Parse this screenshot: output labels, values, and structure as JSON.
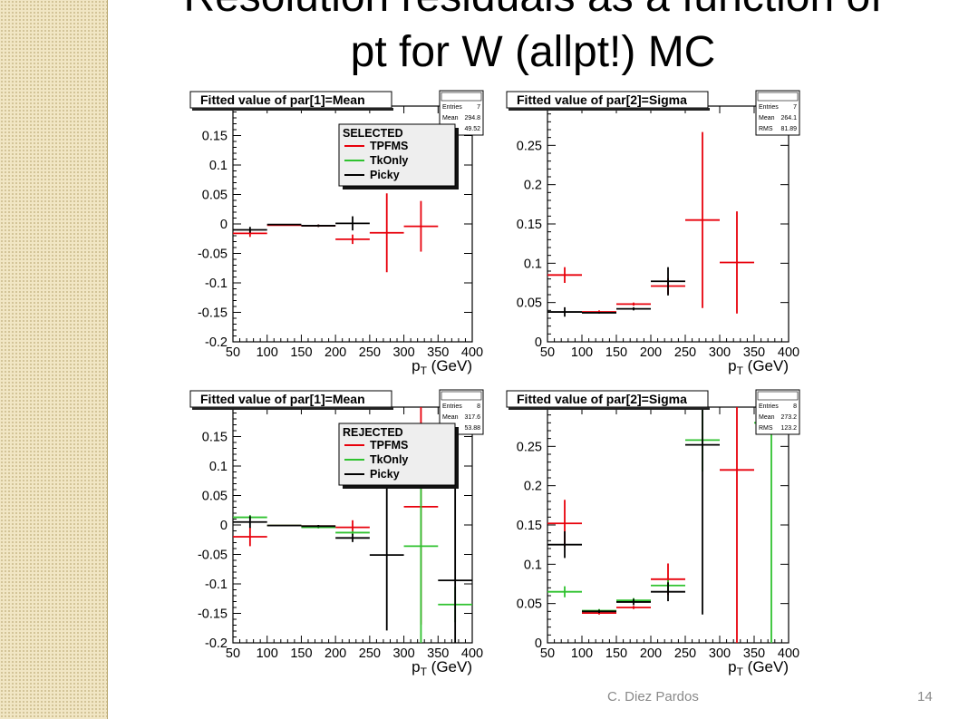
{
  "slide": {
    "title_line1": "Resolution residuals as a function of",
    "title_line2": "pt for W (allpt!) MC",
    "footer_author": "C. Diez Pardos",
    "page_number": "14"
  },
  "colors": {
    "TPFMS": "#e8000b",
    "TkOnly": "#2fc22f",
    "Picky": "#000000"
  },
  "chart_data": [
    {
      "type": "scatter",
      "title": "Fitted value of par[1]=Mean",
      "xlabel": "p_T (GeV)",
      "xlim": [
        50,
        400
      ],
      "ylim": [
        -0.2,
        0.2
      ],
      "xticks": [
        50,
        100,
        150,
        200,
        250,
        300,
        350,
        400
      ],
      "yticks": [
        -0.2,
        -0.15,
        -0.1,
        -0.05,
        0,
        0.05,
        0.1,
        0.15
      ],
      "ytick_labels": [
        "-0.2",
        "-0.15",
        "-0.1",
        "-0.05",
        "0",
        "0.05",
        "0.1",
        "0.15"
      ],
      "stats": {
        "title": "",
        "rows": [
          [
            "Entries",
            "7"
          ],
          [
            "Mean",
            "294.8"
          ],
          [
            "",
            "49.52"
          ]
        ]
      },
      "legend": {
        "header": "SELECTED",
        "entries": [
          "TPFMS",
          "TkOnly",
          "Picky"
        ]
      },
      "series": [
        {
          "name": "TPFMS",
          "points": [
            {
              "x": 75,
              "xerr": 25,
              "y": -0.016,
              "yerr": 0.006
            },
            {
              "x": 125,
              "xerr": 25,
              "y": -0.002,
              "yerr": 0.001
            },
            {
              "x": 175,
              "xerr": 25,
              "y": -0.003,
              "yerr": 0.002
            },
            {
              "x": 225,
              "xerr": 25,
              "y": -0.026,
              "yerr": 0.008
            },
            {
              "x": 275,
              "xerr": 25,
              "y": -0.015,
              "yerr": 0.067
            },
            {
              "x": 325,
              "xerr": 25,
              "y": -0.004,
              "yerr": 0.043
            }
          ]
        },
        {
          "name": "TkOnly",
          "points": []
        },
        {
          "name": "Picky",
          "points": [
            {
              "x": 75,
              "xerr": 25,
              "y": -0.01,
              "yerr": 0.005
            },
            {
              "x": 125,
              "xerr": 25,
              "y": -0.001,
              "yerr": 0.001
            },
            {
              "x": 175,
              "xerr": 25,
              "y": -0.003,
              "yerr": 0.002
            },
            {
              "x": 225,
              "xerr": 25,
              "y": 0.001,
              "yerr": 0.012
            }
          ]
        }
      ]
    },
    {
      "type": "scatter",
      "title": "Fitted value of par[2]=Sigma",
      "xlabel": "p_T (GeV)",
      "xlim": [
        50,
        400
      ],
      "ylim": [
        0,
        0.3
      ],
      "xticks": [
        50,
        100,
        150,
        200,
        250,
        300,
        350,
        400
      ],
      "yticks": [
        0,
        0.05,
        0.1,
        0.15,
        0.2,
        0.25
      ],
      "ytick_labels": [
        "0",
        "0.05",
        "0.1",
        "0.15",
        "0.2",
        "0.25"
      ],
      "stats": {
        "title": "",
        "rows": [
          [
            "Entries",
            "7"
          ],
          [
            "Mean",
            "264.1"
          ],
          [
            "RMS",
            "81.89"
          ]
        ]
      },
      "series": [
        {
          "name": "TPFMS",
          "points": [
            {
              "x": 75,
              "xerr": 25,
              "y": 0.085,
              "yerr": 0.01
            },
            {
              "x": 125,
              "xerr": 25,
              "y": 0.038,
              "yerr": 0.002
            },
            {
              "x": 175,
              "xerr": 25,
              "y": 0.048,
              "yerr": 0.002
            },
            {
              "x": 225,
              "xerr": 25,
              "y": 0.071,
              "yerr": 0.01
            },
            {
              "x": 275,
              "xerr": 25,
              "y": 0.155,
              "yerr": 0.112
            },
            {
              "x": 325,
              "xerr": 25,
              "y": 0.101,
              "yerr": 0.065
            }
          ]
        },
        {
          "name": "TkOnly",
          "points": []
        },
        {
          "name": "Picky",
          "points": [
            {
              "x": 75,
              "xerr": 25,
              "y": 0.038,
              "yerr": 0.006
            },
            {
              "x": 125,
              "xerr": 25,
              "y": 0.037,
              "yerr": 0.001
            },
            {
              "x": 175,
              "xerr": 25,
              "y": 0.042,
              "yerr": 0.002
            },
            {
              "x": 225,
              "xerr": 25,
              "y": 0.077,
              "yerr": 0.018
            }
          ]
        }
      ]
    },
    {
      "type": "scatter",
      "title": "Fitted value of par[1]=Mean",
      "xlabel": "p_T (GeV)",
      "xlim": [
        50,
        400
      ],
      "ylim": [
        -0.2,
        0.2
      ],
      "xticks": [
        50,
        100,
        150,
        200,
        250,
        300,
        350,
        400
      ],
      "yticks": [
        -0.2,
        -0.15,
        -0.1,
        -0.05,
        0,
        0.05,
        0.1,
        0.15
      ],
      "ytick_labels": [
        "-0.2",
        "-0.15",
        "-0.1",
        "-0.05",
        "0",
        "0.05",
        "0.1",
        "0.15"
      ],
      "stats": {
        "title": "",
        "rows": [
          [
            "Entries",
            "8"
          ],
          [
            "Mean",
            "317.6"
          ],
          [
            "",
            "53.88"
          ]
        ]
      },
      "legend": {
        "header": "REJECTED",
        "entries": [
          "TPFMS",
          "TkOnly",
          "Picky"
        ]
      },
      "series": [
        {
          "name": "TPFMS",
          "points": [
            {
              "x": 75,
              "xerr": 25,
              "y": -0.02,
              "yerr": 0.016
            },
            {
              "x": 125,
              "xerr": 25,
              "y": -0.001,
              "yerr": 0.001
            },
            {
              "x": 175,
              "xerr": 25,
              "y": -0.002,
              "yerr": 0.002
            },
            {
              "x": 225,
              "xerr": 25,
              "y": -0.004,
              "yerr": 0.012
            },
            {
              "x": 325,
              "xerr": 25,
              "y": 0.031,
              "yerr": 0.2
            }
          ]
        },
        {
          "name": "TkOnly",
          "points": [
            {
              "x": 75,
              "xerr": 25,
              "y": 0.013,
              "yerr": 0.004
            },
            {
              "x": 125,
              "xerr": 25,
              "y": -0.001,
              "yerr": 0.001
            },
            {
              "x": 175,
              "xerr": 25,
              "y": -0.004,
              "yerr": 0.002
            },
            {
              "x": 225,
              "xerr": 25,
              "y": -0.013,
              "yerr": 0.003
            },
            {
              "x": 325,
              "xerr": 25,
              "y": -0.036,
              "yerr": 0.2
            },
            {
              "x": 375,
              "xerr": 25,
              "y": -0.135,
              "yerr": 0.03
            }
          ]
        },
        {
          "name": "Picky",
          "points": [
            {
              "x": 75,
              "xerr": 25,
              "y": 0.005,
              "yerr": 0.01
            },
            {
              "x": 125,
              "xerr": 25,
              "y": -0.001,
              "yerr": 0.001
            },
            {
              "x": 175,
              "xerr": 25,
              "y": -0.002,
              "yerr": 0.002
            },
            {
              "x": 225,
              "xerr": 25,
              "y": -0.022,
              "yerr": 0.007
            },
            {
              "x": 275,
              "xerr": 25,
              "y": -0.051,
              "yerr": 0.128
            },
            {
              "x": 375,
              "xerr": 25,
              "y": -0.094,
              "yerr": 0.2
            }
          ]
        }
      ]
    },
    {
      "type": "scatter",
      "title": "Fitted value of par[2]=Sigma",
      "xlabel": "p_T (GeV)",
      "xlim": [
        50,
        400
      ],
      "ylim": [
        0,
        0.3
      ],
      "xticks": [
        50,
        100,
        150,
        200,
        250,
        300,
        350,
        400
      ],
      "yticks": [
        0,
        0.05,
        0.1,
        0.15,
        0.2,
        0.25
      ],
      "ytick_labels": [
        "0",
        "0.05",
        "0.1",
        "0.15",
        "0.2",
        "0.25"
      ],
      "stats": {
        "title": "",
        "rows": [
          [
            "Entries",
            "8"
          ],
          [
            "Mean",
            "273.2"
          ],
          [
            "RMS",
            "123.2"
          ]
        ]
      },
      "series": [
        {
          "name": "TPFMS",
          "points": [
            {
              "x": 75,
              "xerr": 25,
              "y": 0.152,
              "yerr": 0.03
            },
            {
              "x": 125,
              "xerr": 25,
              "y": 0.038,
              "yerr": 0.002
            },
            {
              "x": 175,
              "xerr": 25,
              "y": 0.045,
              "yerr": 0.002
            },
            {
              "x": 225,
              "xerr": 25,
              "y": 0.081,
              "yerr": 0.02
            },
            {
              "x": 325,
              "xerr": 25,
              "y": 0.22,
              "yerr": 0.22
            }
          ]
        },
        {
          "name": "TkOnly",
          "points": [
            {
              "x": 75,
              "xerr": 25,
              "y": 0.065,
              "yerr": 0.007
            },
            {
              "x": 125,
              "xerr": 25,
              "y": 0.041,
              "yerr": 0.002
            },
            {
              "x": 175,
              "xerr": 25,
              "y": 0.054,
              "yerr": 0.003
            },
            {
              "x": 225,
              "xerr": 25,
              "y": 0.073,
              "yerr": 0.007
            },
            {
              "x": 275,
              "xerr": 25,
              "y": 0.258,
              "yerr": 0.04
            },
            {
              "x": 375,
              "xerr": 25,
              "y": 0.28,
              "yerr": 0.28
            }
          ]
        },
        {
          "name": "Picky",
          "points": [
            {
              "x": 75,
              "xerr": 25,
              "y": 0.125,
              "yerr": 0.017
            },
            {
              "x": 125,
              "xerr": 25,
              "y": 0.04,
              "yerr": 0.002
            },
            {
              "x": 175,
              "xerr": 25,
              "y": 0.052,
              "yerr": 0.004
            },
            {
              "x": 225,
              "xerr": 25,
              "y": 0.065,
              "yerr": 0.012
            },
            {
              "x": 275,
              "xerr": 25,
              "y": 0.252,
              "yerr": 0.216
            }
          ]
        }
      ]
    }
  ]
}
